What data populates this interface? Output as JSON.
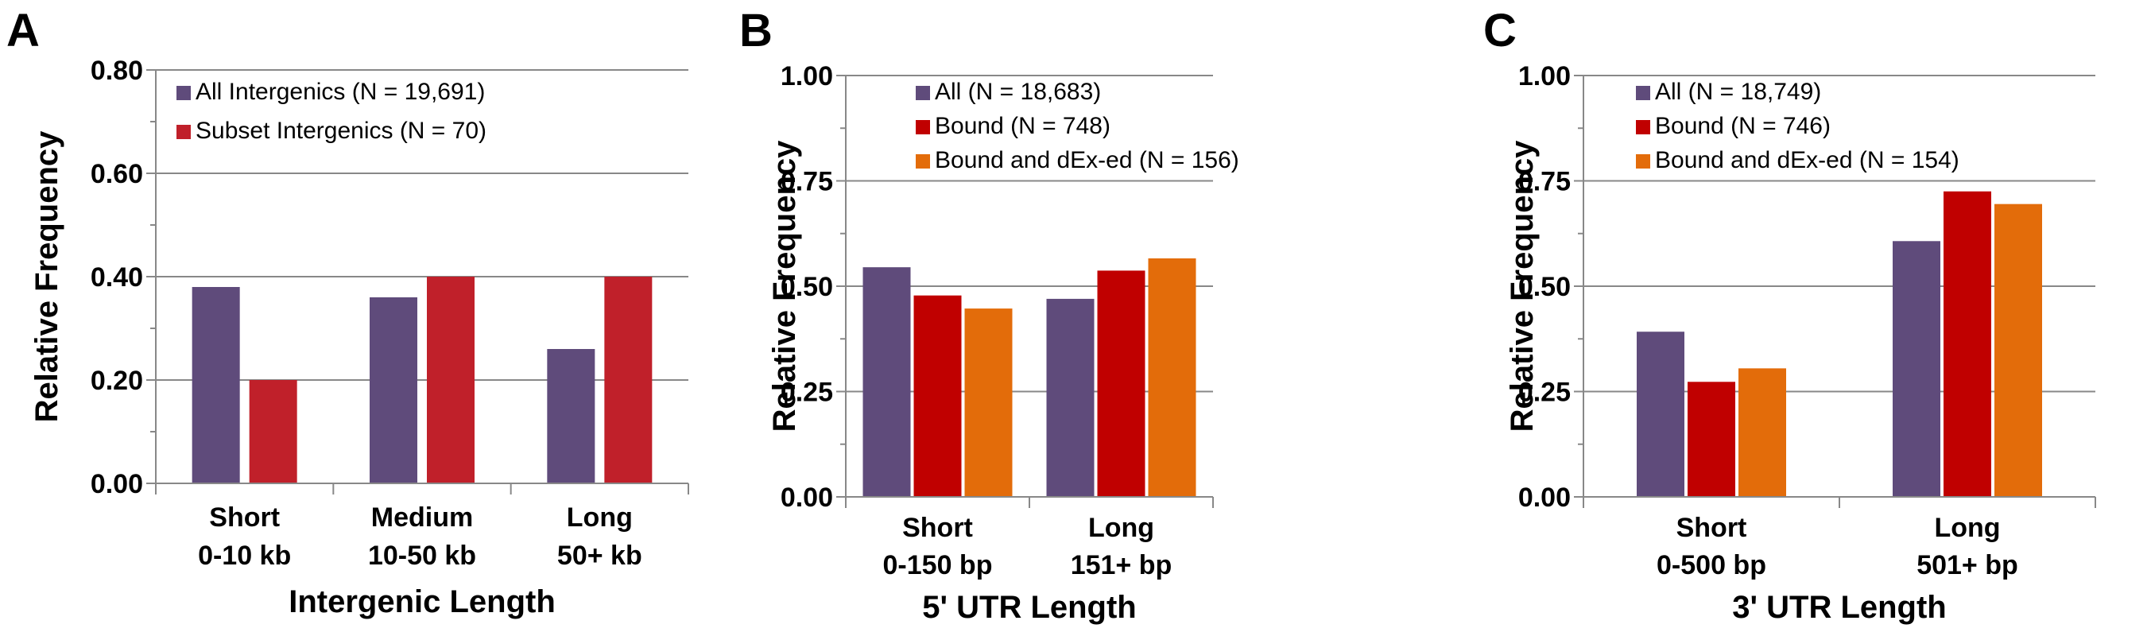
{
  "colors": {
    "purple": "#5f4b7b",
    "red": "#c0202a",
    "dark_red": "#c00000",
    "orange": "#e36c0a",
    "grid": "#888888"
  },
  "chart_data": [
    {
      "panel": "A",
      "type": "bar",
      "categories": [
        [
          "Short",
          "0-10 kb"
        ],
        [
          "Medium",
          "10-50 kb"
        ],
        [
          "Long",
          "50+ kb"
        ]
      ],
      "series": [
        {
          "name": "All Intergenics (N = 19,691)",
          "color": "#5f4b7b",
          "values": [
            0.38,
            0.36,
            0.26
          ]
        },
        {
          "name": "Subset Intergenics (N = 70)",
          "color": "#c0202a",
          "values": [
            0.2,
            0.4,
            0.4
          ]
        }
      ],
      "yticks": [
        "0.00",
        "0.20",
        "0.40",
        "0.60",
        "0.80"
      ],
      "ylim": [
        0,
        0.8
      ],
      "ylabel": "Relative Frequency",
      "xlabel": "Intergenic Length",
      "grid": true,
      "legend": "top-left"
    },
    {
      "panel": "B",
      "type": "bar",
      "categories": [
        [
          "Short",
          "0-150 bp"
        ],
        [
          "Long",
          "151+ bp"
        ]
      ],
      "series": [
        {
          "name": "All (N = 18,683)",
          "color": "#5f4b7b",
          "values": [
            0.545,
            0.47
          ]
        },
        {
          "name": "Bound (N = 748)",
          "color": "#c00000",
          "values": [
            0.478,
            0.537
          ]
        },
        {
          "name": "Bound and dEx-ed (N = 156)",
          "color": "#e36c0a",
          "values": [
            0.447,
            0.566
          ]
        }
      ],
      "yticks": [
        "0.00",
        "0.25",
        "0.50",
        "0.75",
        "1.00"
      ],
      "ylim": [
        0,
        1
      ],
      "ylabel": "Relative Frequency",
      "xlabel": "5' UTR Length",
      "grid": true,
      "legend": "top-left"
    },
    {
      "panel": "C",
      "type": "bar",
      "categories": [
        [
          "Short",
          "0-500 bp"
        ],
        [
          "Long",
          "501+ bp"
        ]
      ],
      "series": [
        {
          "name": "All (N = 18,749)",
          "color": "#5f4b7b",
          "values": [
            0.392,
            0.607
          ]
        },
        {
          "name": "Bound (N = 746)",
          "color": "#c00000",
          "values": [
            0.273,
            0.725
          ]
        },
        {
          "name": "Bound and dEx-ed (N = 154)",
          "color": "#e36c0a",
          "values": [
            0.305,
            0.695
          ]
        }
      ],
      "yticks": [
        "0.00",
        "0.25",
        "0.50",
        "0.75",
        "1.00"
      ],
      "ylim": [
        0,
        1
      ],
      "ylabel": "Relative Frequency",
      "xlabel": "3' UTR Length",
      "grid": true,
      "legend": "top-left"
    }
  ]
}
